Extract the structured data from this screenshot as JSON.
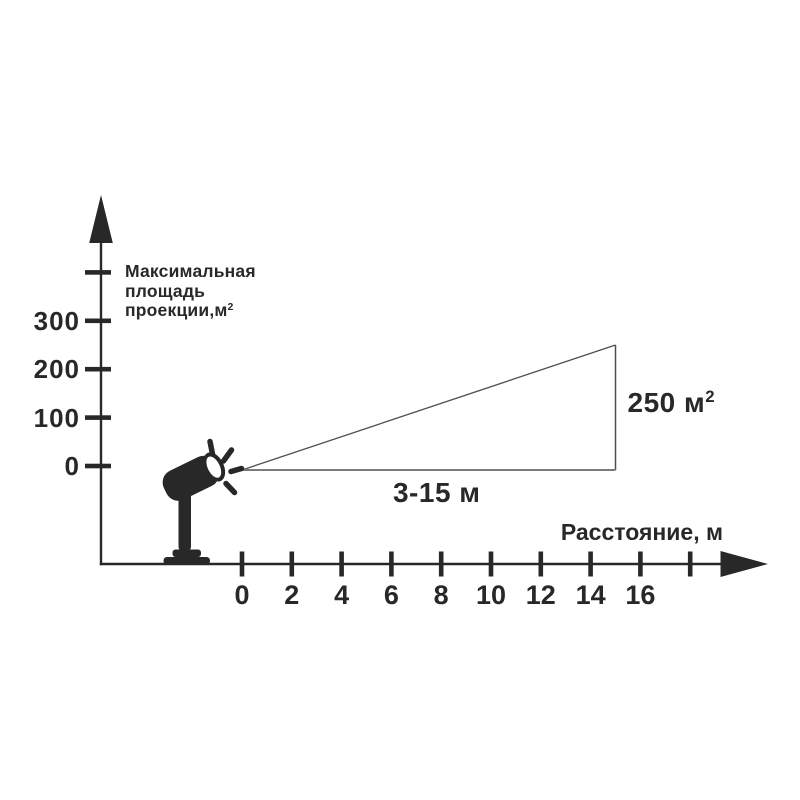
{
  "colors": {
    "ink": "#282828",
    "beam_line": "#4f4f4f",
    "beam_base_line": "#7b7b7b",
    "background": "#ffffff"
  },
  "icons": {
    "projector": "spotlight-projector-icon",
    "y_arrow": "up-arrowhead-icon",
    "x_arrow": "right-arrowhead-icon"
  },
  "chart_data": {
    "type": "line",
    "title": "",
    "xlabel": "Расстояние, м",
    "ylabel": "Максимальная площадь проекции,м2",
    "series": [
      {
        "name": "projection-beam",
        "x": [
          0,
          15
        ],
        "y": [
          0,
          250
        ]
      }
    ],
    "x_axis": {
      "label": "Расстояние, м",
      "tick_values": [
        0,
        2,
        4,
        6,
        8,
        10,
        12,
        14,
        16
      ],
      "tick_labels": [
        "0",
        "2",
        "4",
        "6",
        "8",
        "10",
        "12",
        "14",
        "16"
      ],
      "unlabeled_extra_tick_value": 18,
      "range_shown": [
        0,
        18
      ]
    },
    "y_axis": {
      "title_lines": [
        "Максимальная",
        "площадь",
        "проекции,м"
      ],
      "title_superscript": "2",
      "tick_values": [
        0,
        100,
        200,
        300
      ],
      "tick_labels": [
        "0",
        "100",
        "200",
        "300"
      ],
      "unlabeled_extra_tick_value": 400,
      "range_shown": [
        0,
        400
      ]
    },
    "beam": {
      "start_m": 0,
      "end_m": 15,
      "max_area_m2": 250
    },
    "annotations": {
      "area_value": "250 м",
      "area_superscript": "2",
      "distance_range": "3-15 м"
    },
    "legend": "none",
    "grid": "off"
  }
}
